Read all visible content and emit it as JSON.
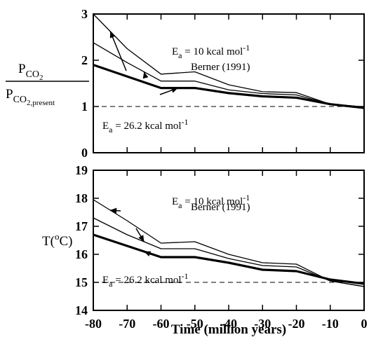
{
  "chart_data": [
    {
      "type": "line",
      "ylabel_parts": {
        "numerator": "P",
        "numerator_sub": "CO",
        "numerator_sub2": "2",
        "denominator": "P",
        "denominator_sub": "CO",
        "denominator_sub2": "2,present"
      },
      "xlim": [
        -80,
        0
      ],
      "ylim": [
        0,
        3
      ],
      "yticks": [
        "0",
        "1",
        "2",
        "3"
      ],
      "reference_line": {
        "y": 1,
        "style": "dashed"
      },
      "x": [
        -80,
        -70,
        -60,
        -50,
        -40,
        -30,
        -20,
        -10,
        0
      ],
      "series": [
        {
          "name": "Ea = 10 kcal mol-1",
          "values": [
            3.0,
            2.25,
            1.7,
            1.75,
            1.47,
            1.32,
            1.3,
            1.05,
            0.99
          ]
        },
        {
          "name": "Berner (1991)",
          "values": [
            2.38,
            1.95,
            1.55,
            1.55,
            1.36,
            1.28,
            1.25,
            1.05,
            0.99
          ]
        },
        {
          "name": "Ea = 26.2 kcal mol-1",
          "values": [
            1.9,
            1.65,
            1.4,
            1.4,
            1.29,
            1.22,
            1.19,
            1.05,
            0.97
          ]
        }
      ],
      "annotations": [
        {
          "series": 0,
          "text_main": "E",
          "text_sub": "a",
          "text_rest": " = 10 kcal mol",
          "text_sup": "-1"
        },
        {
          "series": 1,
          "text_main": "Berner (1991)",
          "text_sub": "",
          "text_rest": "",
          "text_sup": ""
        },
        {
          "series": 2,
          "text_main": "E",
          "text_sub": "a",
          "text_rest": " = 26.2 kcal mol",
          "text_sup": "-1"
        }
      ]
    },
    {
      "type": "line",
      "ylabel": "T(°C)",
      "ylabel_parts": {
        "main": "T(",
        "deg": "o",
        "rest": "C)"
      },
      "xlabel": "Time (million years)",
      "xlim": [
        -80,
        0
      ],
      "ylim": [
        14,
        19
      ],
      "yticks": [
        "14",
        "15",
        "16",
        "17",
        "18",
        "19"
      ],
      "xticks": [
        "-80",
        "-70",
        "-60",
        "-50",
        "-40",
        "-30",
        "-20",
        "-10",
        "0"
      ],
      "reference_line": {
        "y": 15,
        "style": "dashed"
      },
      "x": [
        -80,
        -70,
        -60,
        -50,
        -40,
        -30,
        -20,
        -10,
        0
      ],
      "series": [
        {
          "name": "Ea = 10 kcal mol-1",
          "values": [
            17.95,
            17.2,
            16.4,
            16.45,
            16.0,
            15.7,
            15.65,
            15.05,
            14.85
          ]
        },
        {
          "name": "Berner (1991)",
          "values": [
            17.3,
            16.7,
            16.2,
            16.2,
            15.85,
            15.6,
            15.55,
            15.05,
            14.85
          ]
        },
        {
          "name": "Ea = 26.2 kcal mol-1",
          "values": [
            16.7,
            16.3,
            15.9,
            15.9,
            15.7,
            15.45,
            15.4,
            15.1,
            14.95
          ]
        }
      ],
      "annotations": [
        {
          "series": 0,
          "text_main": "E",
          "text_sub": "a",
          "text_rest": " = 10 kcal mol",
          "text_sup": "-1"
        },
        {
          "series": 1,
          "text_main": "Berner (1991)",
          "text_sub": "",
          "text_rest": "",
          "text_sup": ""
        },
        {
          "series": 2,
          "text_main": "E",
          "text_sub": "a",
          "text_rest": " = 26.2 kcal mol",
          "text_sup": "-1"
        }
      ]
    }
  ]
}
